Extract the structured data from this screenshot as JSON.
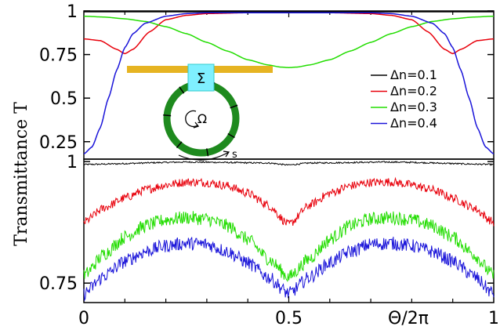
{
  "chart_data": [
    {
      "type": "line",
      "panel": "top",
      "ylabel": "Transmittance T",
      "xlim": [
        0,
        1
      ],
      "ylim": [
        0.15,
        1.0
      ],
      "y_ticks": [
        "0.25",
        "0.5",
        "0.75",
        "1"
      ],
      "legend": {
        "placement": "right",
        "entries": [
          "Δn=0.1",
          "Δn=0.2",
          "Δn=0.3",
          "Δn=0.4"
        ]
      },
      "series": [
        {
          "name": "Δn=0.1",
          "color": "#000000",
          "x": [
            0,
            1
          ],
          "y": [
            1.0,
            1.0
          ]
        },
        {
          "name": "Δn=0.2",
          "color": "#e8000b",
          "x": [
            0,
            0.04,
            0.08,
            0.1,
            0.12,
            0.16,
            0.2,
            0.25,
            0.3,
            0.4,
            0.5,
            0.6,
            0.7,
            0.75,
            0.8,
            0.84,
            0.88,
            0.9,
            0.92,
            0.96,
            1.0
          ],
          "y": [
            0.84,
            0.83,
            0.78,
            0.755,
            0.78,
            0.88,
            0.95,
            0.975,
            0.985,
            0.99,
            0.99,
            0.99,
            0.985,
            0.975,
            0.95,
            0.88,
            0.78,
            0.755,
            0.78,
            0.83,
            0.84
          ]
        },
        {
          "name": "Δn=0.3",
          "color": "#22dd00",
          "x": [
            0,
            0.05,
            0.1,
            0.15,
            0.2,
            0.25,
            0.3,
            0.35,
            0.4,
            0.45,
            0.48,
            0.5,
            0.52,
            0.55,
            0.6,
            0.65,
            0.7,
            0.75,
            0.8,
            0.85,
            0.9,
            0.95,
            1.0
          ],
          "y": [
            0.97,
            0.965,
            0.955,
            0.94,
            0.91,
            0.87,
            0.82,
            0.77,
            0.72,
            0.69,
            0.678,
            0.675,
            0.678,
            0.69,
            0.72,
            0.77,
            0.82,
            0.87,
            0.91,
            0.94,
            0.955,
            0.965,
            0.97
          ]
        },
        {
          "name": "Δn=0.4",
          "color": "#1a14d9",
          "x": [
            0,
            0.02,
            0.04,
            0.06,
            0.08,
            0.1,
            0.12,
            0.15,
            0.2,
            0.25,
            0.3,
            0.4,
            0.5,
            0.6,
            0.7,
            0.75,
            0.8,
            0.85,
            0.88,
            0.9,
            0.92,
            0.94,
            0.96,
            0.98,
            1.0
          ],
          "y": [
            0.18,
            0.22,
            0.33,
            0.5,
            0.66,
            0.79,
            0.87,
            0.93,
            0.97,
            0.985,
            0.99,
            0.99,
            0.99,
            0.99,
            0.99,
            0.985,
            0.97,
            0.93,
            0.87,
            0.79,
            0.66,
            0.5,
            0.33,
            0.22,
            0.18
          ]
        }
      ],
      "inset": {
        "coupler_label": "Σ",
        "ring_label": "Ω",
        "arc_label": "s"
      }
    },
    {
      "type": "line",
      "panel": "bottom",
      "xlabel": "Θ/2π",
      "xlim": [
        0,
        1
      ],
      "ylim": [
        0.71,
        1.005
      ],
      "x_ticks": [
        "0",
        "0.5",
        "1"
      ],
      "x_tick_values": [
        0,
        0.5,
        1
      ],
      "y_ticks": [
        "0.75",
        "1"
      ],
      "y_tick_values": [
        0.75,
        1.0
      ],
      "series": [
        {
          "name": "Δn=0.1",
          "color": "#000000",
          "x": [
            0,
            0.25,
            0.45,
            0.5,
            0.55,
            0.75,
            1.0
          ],
          "y": [
            0.994,
            0.999,
            0.997,
            0.993,
            0.997,
            0.999,
            0.994
          ],
          "noise": 0.0015
        },
        {
          "name": "Δn=0.2",
          "color": "#e8000b",
          "x": [
            0,
            0.05,
            0.1,
            0.15,
            0.2,
            0.25,
            0.3,
            0.35,
            0.4,
            0.45,
            0.5,
            0.55,
            0.6,
            0.65,
            0.7,
            0.75,
            0.8,
            0.85,
            0.9,
            0.95,
            1.0
          ],
          "y": [
            0.875,
            0.905,
            0.925,
            0.942,
            0.952,
            0.958,
            0.957,
            0.95,
            0.935,
            0.91,
            0.87,
            0.91,
            0.935,
            0.95,
            0.957,
            0.958,
            0.952,
            0.942,
            0.925,
            0.905,
            0.875
          ],
          "noise": 0.009
        },
        {
          "name": "Δn=0.3",
          "color": "#22dd00",
          "x": [
            0,
            0.05,
            0.1,
            0.15,
            0.2,
            0.25,
            0.3,
            0.35,
            0.4,
            0.45,
            0.5,
            0.55,
            0.6,
            0.65,
            0.7,
            0.75,
            0.8,
            0.85,
            0.9,
            0.95,
            1.0
          ],
          "y": [
            0.765,
            0.81,
            0.845,
            0.868,
            0.88,
            0.885,
            0.882,
            0.868,
            0.84,
            0.8,
            0.762,
            0.8,
            0.84,
            0.868,
            0.882,
            0.885,
            0.88,
            0.868,
            0.845,
            0.81,
            0.765
          ],
          "noise": 0.014
        },
        {
          "name": "Δn=0.4",
          "color": "#1a14d9",
          "x": [
            0,
            0.05,
            0.1,
            0.15,
            0.2,
            0.25,
            0.3,
            0.35,
            0.4,
            0.45,
            0.5,
            0.55,
            0.6,
            0.65,
            0.7,
            0.75,
            0.8,
            0.85,
            0.9,
            0.95,
            1.0
          ],
          "y": [
            0.728,
            0.765,
            0.795,
            0.815,
            0.827,
            0.832,
            0.83,
            0.815,
            0.792,
            0.762,
            0.728,
            0.762,
            0.792,
            0.815,
            0.83,
            0.832,
            0.827,
            0.815,
            0.795,
            0.765,
            0.728
          ],
          "noise": 0.014
        }
      ]
    }
  ]
}
